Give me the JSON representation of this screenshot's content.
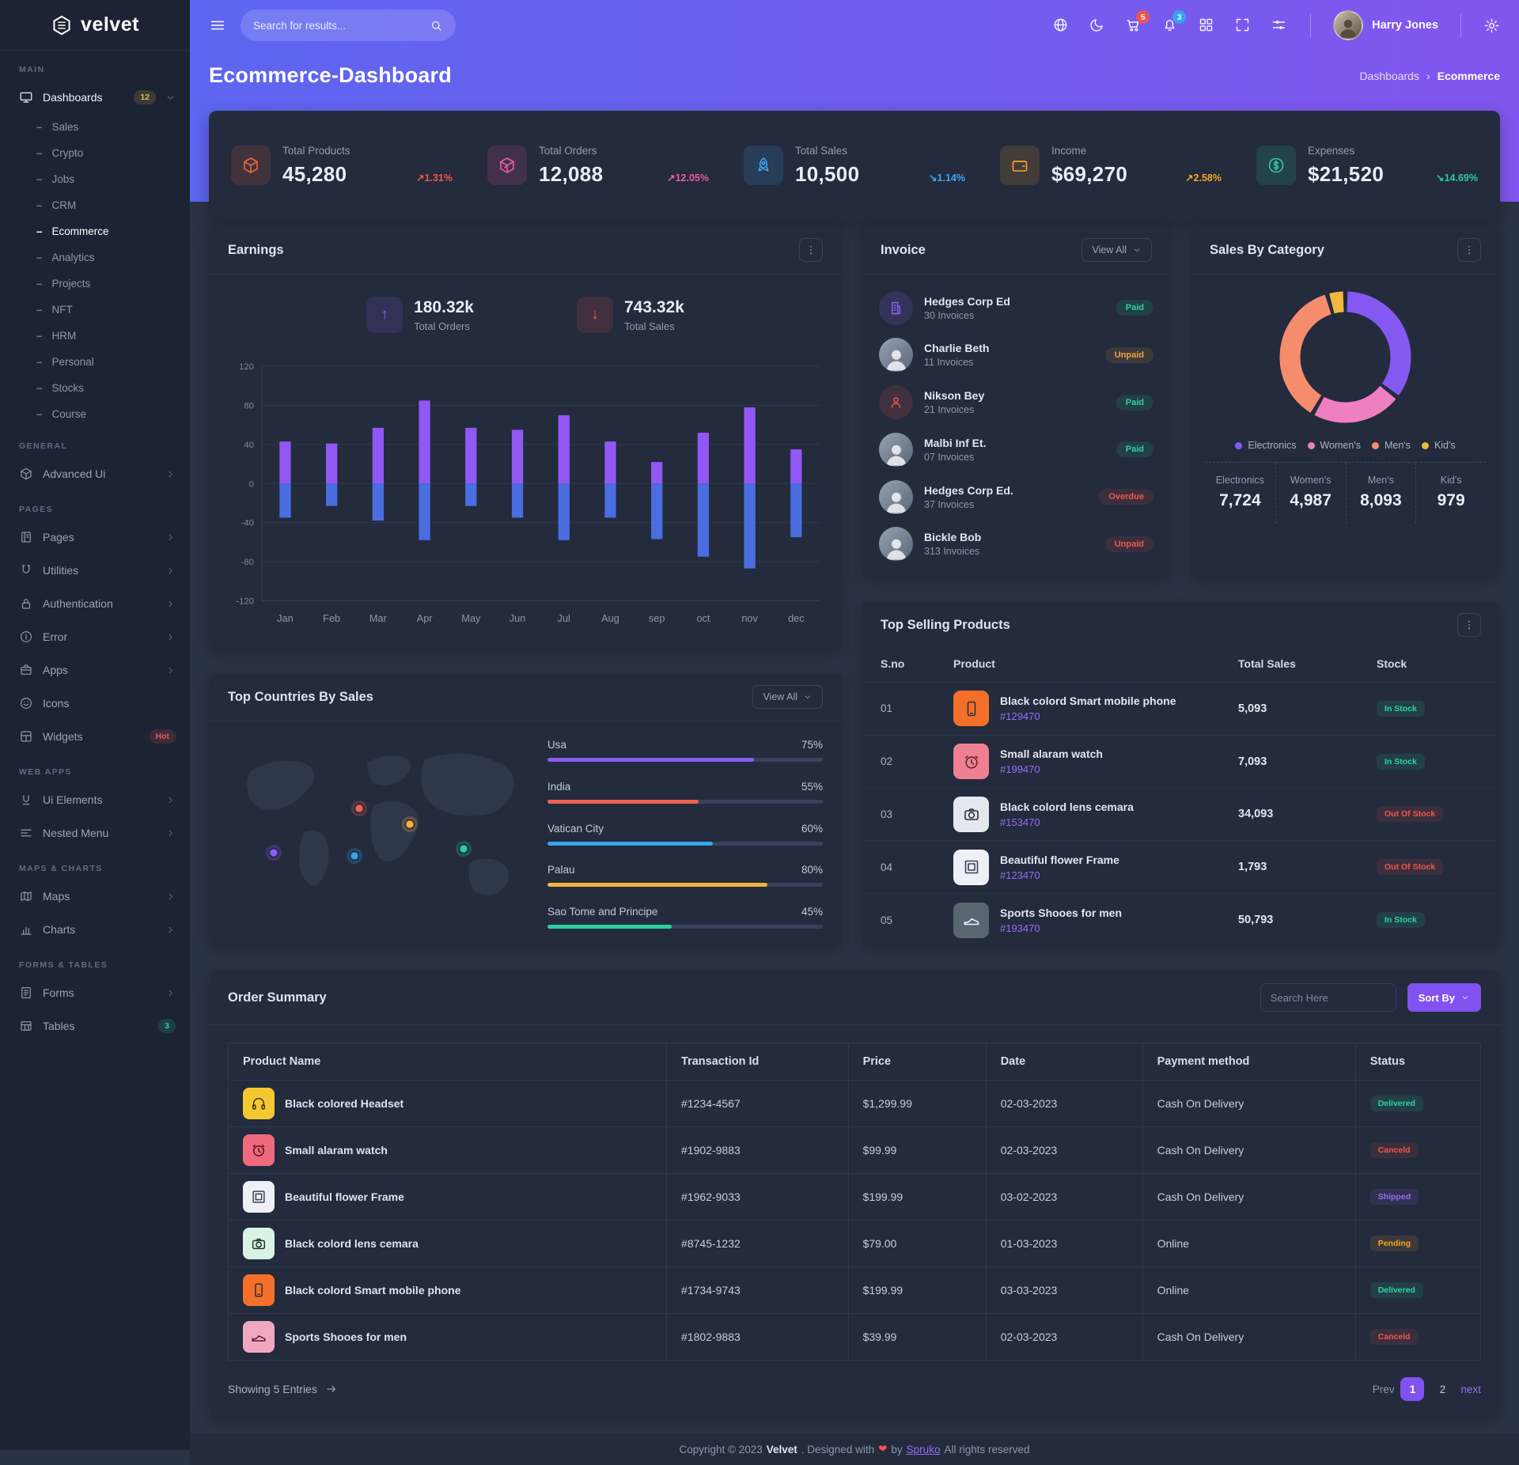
{
  "brand": {
    "name": "velvet"
  },
  "header": {
    "search_placeholder": "Search for results...",
    "cart_badge": "5",
    "notif_badge": "3",
    "user_name": "Harry Jones"
  },
  "page": {
    "title": "Ecommerce-Dashboard",
    "breadcrumb_parent": "Dashboards",
    "breadcrumb_current": "Ecommerce"
  },
  "sidebar": {
    "sections": [
      {
        "label": "MAIN",
        "items": [
          {
            "label": "Dashboards",
            "icon": "monitor",
            "badge": "12",
            "badge_color": "amber",
            "chevron": "down",
            "active": true,
            "children": [
              "Sales",
              "Crypto",
              "Jobs",
              "CRM",
              "Ecommerce",
              "Analytics",
              "Projects",
              "NFT",
              "HRM",
              "Personal",
              "Stocks",
              "Course"
            ],
            "active_child": "Ecommerce"
          }
        ]
      },
      {
        "label": "GENERAL",
        "items": [
          {
            "label": "Advanced Ui",
            "icon": "cube",
            "chevron": "right"
          }
        ]
      },
      {
        "label": "PAGES",
        "items": [
          {
            "label": "Pages",
            "icon": "pages",
            "chevron": "right"
          },
          {
            "label": "Utilities",
            "icon": "magnet",
            "chevron": "right"
          },
          {
            "label": "Authentication",
            "icon": "lock",
            "chevron": "right"
          },
          {
            "label": "Error",
            "icon": "info",
            "chevron": "right"
          },
          {
            "label": "Apps",
            "icon": "briefcase",
            "chevron": "right"
          },
          {
            "label": "Icons",
            "icon": "smiley"
          },
          {
            "label": "Widgets",
            "icon": "widgets",
            "badge": "Hot",
            "badge_color": "red"
          }
        ]
      },
      {
        "label": "WEB APPS",
        "items": [
          {
            "label": "Ui Elements",
            "icon": "uielem",
            "chevron": "right"
          },
          {
            "label": "Nested Menu",
            "icon": "nested",
            "chevron": "right"
          }
        ]
      },
      {
        "label": "MAPS & CHARTS",
        "items": [
          {
            "label": "Maps",
            "icon": "map",
            "chevron": "right"
          },
          {
            "label": "Charts",
            "icon": "chart",
            "chevron": "right"
          }
        ]
      },
      {
        "label": "FORMS & TABLES",
        "items": [
          {
            "label": "Forms",
            "icon": "forms",
            "chevron": "right"
          },
          {
            "label": "Tables",
            "icon": "table",
            "badge": "3",
            "badge_color": "teal"
          }
        ]
      }
    ]
  },
  "stats": [
    {
      "label": "Total Products",
      "value": "45,280",
      "delta": "1.31%",
      "direction": "up",
      "delta_color": "#f0564a",
      "icon": "cube",
      "icon_color": "#f4633c"
    },
    {
      "label": "Total Orders",
      "value": "12,088",
      "delta": "12.05%",
      "direction": "up",
      "delta_color": "#ef5aa8",
      "icon": "cuberet",
      "icon_color": "#ef5aa8"
    },
    {
      "label": "Total Sales",
      "value": "10,500",
      "delta": "1.14%",
      "direction": "down",
      "delta_color": "#41a6f5",
      "icon": "rocket",
      "icon_color": "#41a6f5"
    },
    {
      "label": "Income",
      "value": "$69,270",
      "delta": "2.58%",
      "direction": "up",
      "delta_color": "#f5a623",
      "icon": "wallet",
      "icon_color": "#f5a623"
    },
    {
      "label": "Expenses",
      "value": "$21,520",
      "delta": "14.69%",
      "direction": "down",
      "delta_color": "#2ecb9a",
      "icon": "dollar",
      "icon_color": "#2ecb9a"
    }
  ],
  "earnings": {
    "title": "Earnings",
    "kpis": [
      {
        "value": "180.32k",
        "label": "Total Orders",
        "direction": "up",
        "color": "#8b63f2"
      },
      {
        "value": "743.32k",
        "label": "Total Sales",
        "direction": "down",
        "color": "#f0564a"
      }
    ]
  },
  "chart_data": [
    {
      "type": "bar",
      "title": "Earnings",
      "categories": [
        "Jan",
        "Feb",
        "Mar",
        "Apr",
        "May",
        "Jun",
        "Jul",
        "Aug",
        "sep",
        "oct",
        "nov",
        "dec"
      ],
      "series": [
        {
          "name": "Total Orders",
          "color": "#9257f5",
          "values": [
            43,
            41,
            57,
            85,
            57,
            55,
            70,
            43,
            22,
            52,
            78,
            35
          ]
        },
        {
          "name": "Total Sales",
          "color": "#4a6ee0",
          "values": [
            -35,
            -23,
            -38,
            -58,
            -23,
            -35,
            -58,
            -35,
            -57,
            -75,
            -87,
            -55
          ]
        }
      ],
      "ylim": [
        -120,
        120
      ],
      "yticks": [
        120,
        80,
        40,
        0,
        -40,
        -80,
        -120
      ],
      "grid": true,
      "legend_position": "none"
    },
    {
      "type": "pie",
      "title": "Sales By Category",
      "categories": [
        "Electronics",
        "Women's",
        "Men's",
        "Kid's"
      ],
      "values": [
        7724,
        4987,
        8093,
        979
      ],
      "colors": [
        "#8658f2",
        "#f07fc0",
        "#f58c6c",
        "#f0b83d"
      ],
      "legend_position": "bottom"
    }
  ],
  "invoice": {
    "title": "Invoice",
    "view_all": "View All",
    "items": [
      {
        "name": "Hedges Corp Ed",
        "invoices": "30 Invoices",
        "status": "Paid",
        "status_color": "#2dd49c",
        "avatar": "building",
        "avatar_color": "#8b63f2"
      },
      {
        "name": "Charlie Beth",
        "invoices": "11 Invoices",
        "status": "Unpaid",
        "status_color": "#f2a33c",
        "avatar": "photo"
      },
      {
        "name": "Nikson Bey",
        "invoices": "21 Invoices",
        "status": "Paid",
        "status_color": "#2dd49c",
        "avatar": "person",
        "avatar_color": "#f0564a"
      },
      {
        "name": "Malbi Inf Et.",
        "invoices": "07 Invoices",
        "status": "Paid",
        "status_color": "#2dd49c",
        "avatar": "photo"
      },
      {
        "name": "Hedges Corp Ed.",
        "invoices": "37 Invoices",
        "status": "Overdue",
        "status_color": "#f0564a",
        "avatar": "photo"
      },
      {
        "name": "Bickle Bob",
        "invoices": "313 Invoices",
        "status": "Unpaid",
        "status_color": "#f0564a",
        "avatar": "photo"
      }
    ]
  },
  "sales_by_category": {
    "title": "Sales By Category",
    "legend": [
      {
        "label": "Electronics",
        "color": "#8658f2"
      },
      {
        "label": "Women's",
        "color": "#f07fc0"
      },
      {
        "label": "Men's",
        "color": "#f58c6c"
      },
      {
        "label": "Kid's",
        "color": "#f0b83d"
      }
    ],
    "stats": [
      {
        "label": "Electronics",
        "value": "7,724"
      },
      {
        "label": "Women's",
        "value": "4,987"
      },
      {
        "label": "Men's",
        "value": "8,093"
      },
      {
        "label": "Kid's",
        "value": "979"
      }
    ]
  },
  "top_countries": {
    "title": "Top Countries By Sales",
    "view_all": "View All",
    "items": [
      {
        "name": "Usa",
        "pct": 75,
        "color": "#8b5cf6"
      },
      {
        "name": "India",
        "pct": 55,
        "color": "#ef6351"
      },
      {
        "name": "Vatican City",
        "pct": 60,
        "color": "#38a3e8"
      },
      {
        "name": "Palau",
        "pct": 80,
        "color": "#f2b33d"
      },
      {
        "name": "Sao Tome and Principe",
        "pct": 45,
        "color": "#2ccf9f"
      }
    ]
  },
  "top_products": {
    "title": "Top Selling Products",
    "headers": [
      "S.no",
      "Product",
      "Total Sales",
      "Stock"
    ],
    "rows": [
      {
        "sno": "01",
        "name": "Black colord Smart mobile phone",
        "id": "#129470",
        "sales": "5,093",
        "stock": "In Stock",
        "stock_state": "in",
        "thumb": "phone",
        "thumb_bg": "#f4702a",
        "thumb_fg": "#2a2f3a"
      },
      {
        "sno": "02",
        "name": "Small alaram watch",
        "id": "#199470",
        "sales": "7,093",
        "stock": "In Stock",
        "stock_state": "in",
        "thumb": "clock",
        "thumb_bg": "#ef8092",
        "thumb_fg": "#5e2330"
      },
      {
        "sno": "03",
        "name": "Black colord lens cemara",
        "id": "#153470",
        "sales": "34,093",
        "stock": "Out Of Stock",
        "stock_state": "out",
        "thumb": "camera",
        "thumb_bg": "#e4e7ee",
        "thumb_fg": "#2a2f3a"
      },
      {
        "sno": "04",
        "name": "Beautiful flower Frame",
        "id": "#123470",
        "sales": "1,793",
        "stock": "Out Of Stock",
        "stock_state": "out",
        "thumb": "frame",
        "thumb_bg": "#eef0f5",
        "thumb_fg": "#3a4254"
      },
      {
        "sno": "05",
        "name": "Sports Shooes for men",
        "id": "#193470",
        "sales": "50,793",
        "stock": "In Stock",
        "stock_state": "in",
        "thumb": "shoe",
        "thumb_bg": "#5a6572",
        "thumb_fg": "#eef0f5"
      }
    ]
  },
  "order_summary": {
    "title": "Order Summary",
    "search_placeholder": "Search Here",
    "sort_label": "Sort By",
    "headers": [
      "Product Name",
      "Transaction Id",
      "Price",
      "Date",
      "Payment method",
      "Status"
    ],
    "rows": [
      {
        "product": "Black colored Headset",
        "icon": "headphones",
        "icon_bg": "#f5c832",
        "icon_fg": "#3a3009",
        "tx": "#1234-4567",
        "price": "$1,299.99",
        "date": "02-03-2023",
        "method": "Cash On Delivery",
        "status": "Delivered",
        "status_color": "#2dd49c"
      },
      {
        "product": "Small alaram watch",
        "icon": "clock",
        "icon_bg": "#ef6a7c",
        "icon_fg": "#4d101c",
        "tx": "#1902-9883",
        "price": "$99.99",
        "date": "02-03-2023",
        "method": "Cash On Delivery",
        "status": "Canceld",
        "status_color": "#f0564a"
      },
      {
        "product": "Beautiful flower Frame",
        "icon": "frame",
        "icon_bg": "#eef0f5",
        "icon_fg": "#3a4254",
        "tx": "#1962-9033",
        "price": "$199.99",
        "date": "03-02-2023",
        "method": "Cash On Delivery",
        "status": "Shipped",
        "status_color": "#9a6cf5"
      },
      {
        "product": "Black colord lens cemara",
        "icon": "camera",
        "icon_bg": "#d8f2e4",
        "icon_fg": "#20322a",
        "tx": "#8745-1232",
        "price": "$79.00",
        "date": "01-03-2023",
        "method": "Online",
        "status": "Pending",
        "status_color": "#f5a623"
      },
      {
        "product": "Black colord Smart mobile phone",
        "icon": "phone",
        "icon_bg": "#f4702a",
        "icon_fg": "#2a2f3a",
        "tx": "#1734-9743",
        "price": "$199.99",
        "date": "03-03-2023",
        "method": "Online",
        "status": "Delivered",
        "status_color": "#2dd49c"
      },
      {
        "product": "Sports Shooes for men",
        "icon": "shoe",
        "icon_bg": "#f0a8c0",
        "icon_fg": "#4d1a2e",
        "tx": "#1802-9883",
        "price": "$39.99",
        "date": "02-03-2023",
        "method": "Cash On Delivery",
        "status": "Canceld",
        "status_color": "#f0564a"
      }
    ],
    "showing": "Showing 5 Entries",
    "pagination": {
      "prev": "Prev",
      "pages": [
        "1",
        "2"
      ],
      "active": "1",
      "next": "next"
    }
  },
  "footer": {
    "prefix": "Copyright © 2023",
    "brand": "Velvet",
    "mid": ". Designed with",
    "heart": "❤",
    "by": "by",
    "designer": "Spruko",
    "suffix": "All rights reserved"
  }
}
